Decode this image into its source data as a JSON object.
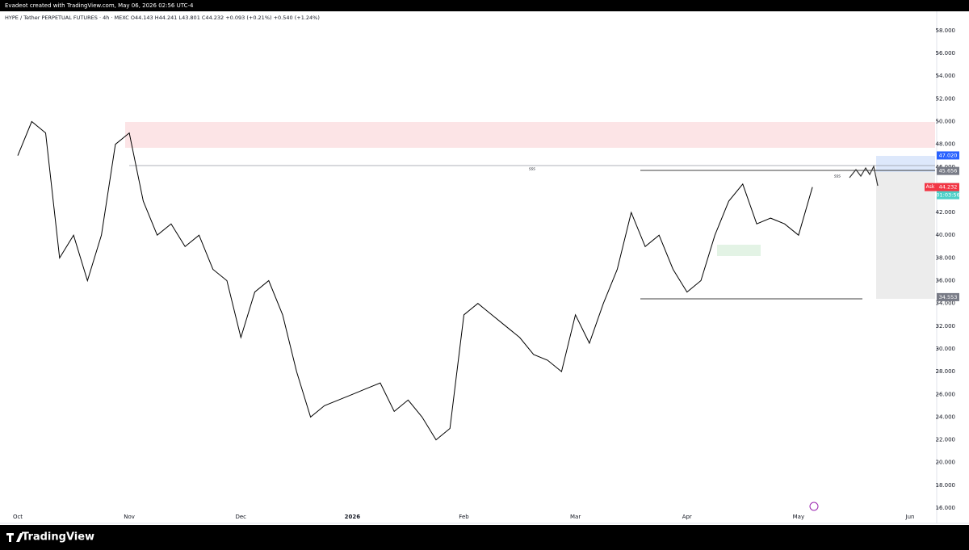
{
  "header": "Evadeot created with TradingView.com, May 06, 2026 02:56 UTC-4",
  "footer": "TradingView",
  "chart_data": {
    "type": "line",
    "title": "HYPE / Tether PERPETUAL FUTURES · 4h · MEXC   O44.143 H44.241 L43.801 C44.232 +0.093 (+0.21%) +0.540 (+1.24%)",
    "color": "#000000",
    "categories": [
      "Oct",
      null,
      null,
      null,
      null,
      null,
      null,
      null,
      "Nov",
      null,
      null,
      null,
      null,
      null,
      null,
      null,
      "Dec",
      null,
      null,
      null,
      null,
      null,
      null,
      null,
      "2026",
      null,
      null,
      null,
      null,
      null,
      null,
      null,
      "Feb",
      null,
      null,
      null,
      null,
      null,
      null,
      null,
      "Mar",
      null,
      null,
      null,
      null,
      null,
      null,
      null,
      "Apr",
      null,
      null,
      null,
      null,
      null,
      null,
      null,
      "May",
      null,
      null,
      null,
      null,
      null,
      null,
      null,
      "Jun",
      null
    ],
    "values": [
      47,
      50,
      49,
      38,
      40,
      36,
      40,
      48,
      49,
      43,
      40,
      41,
      39,
      40,
      37,
      36,
      31,
      35,
      36,
      33,
      28,
      24,
      25,
      25.5,
      26,
      26.5,
      27,
      24.5,
      25.5,
      24,
      22,
      23,
      33,
      34,
      33,
      32,
      31,
      29.5,
      29,
      28,
      33,
      30.5,
      34,
      37,
      42,
      39,
      40,
      37,
      35,
      36,
      40,
      43,
      44.5,
      41,
      41.5,
      41,
      40,
      44.232,
      null,
      null,
      null,
      null,
      null,
      null,
      null,
      null
    ],
    "ylim": [
      14.65,
      59.7
    ],
    "yticks": [
      {
        "value": 16,
        "label": "16.000"
      },
      {
        "value": 18,
        "label": "18.000"
      },
      {
        "value": 20,
        "label": "20.000"
      },
      {
        "value": 22,
        "label": "22.000"
      },
      {
        "value": 24,
        "label": "24.000"
      },
      {
        "value": 26,
        "label": "26.000"
      },
      {
        "value": 28,
        "label": "28.000"
      },
      {
        "value": 30,
        "label": "30.000"
      },
      {
        "value": 32,
        "label": "32.000"
      },
      {
        "value": 34,
        "label": "34.000"
      },
      {
        "value": 36,
        "label": "36.000"
      },
      {
        "value": 38,
        "label": "38.000"
      },
      {
        "value": 40,
        "label": "40.000"
      },
      {
        "value": 42,
        "label": "42.000"
      },
      {
        "value": 44,
        "label": "44.000"
      },
      {
        "value": 46,
        "label": "46.000"
      },
      {
        "value": 48,
        "label": "48.000"
      },
      {
        "value": 50,
        "label": "50.000"
      },
      {
        "value": 52,
        "label": "52.000"
      },
      {
        "value": 54,
        "label": "54.000"
      },
      {
        "value": 56,
        "label": "56.000"
      },
      {
        "value": 58,
        "label": "58.000"
      }
    ],
    "price_labels": [
      {
        "value": 47.02,
        "label": "47.020",
        "color": "#2962ff"
      },
      {
        "value": 45.656,
        "label": "45.656",
        "color": "#787b86"
      },
      {
        "value": 34.553,
        "label": "34.553",
        "color": "#787b86"
      }
    ],
    "last_price": {
      "value": 44.232,
      "label": "44.232",
      "side": "Ask",
      "countdown": "01:03:56",
      "color": "#f23645"
    },
    "annotations": [
      "sss",
      "sss"
    ]
  }
}
